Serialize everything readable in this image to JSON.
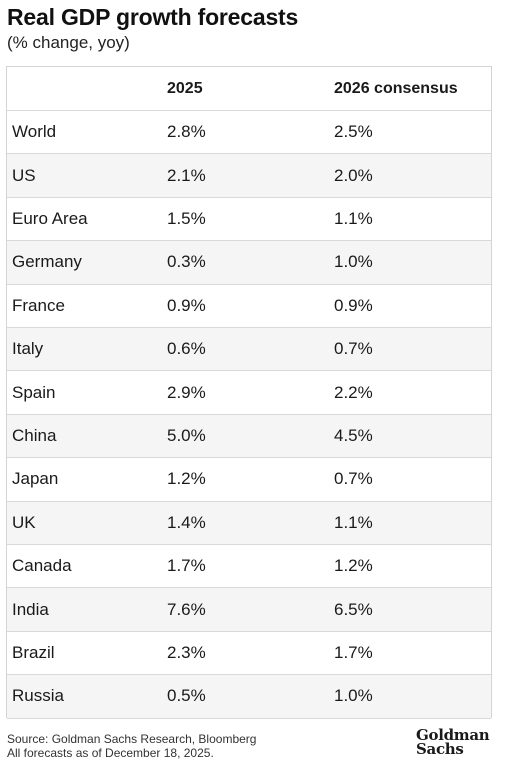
{
  "header": {
    "title": "Real GDP growth forecasts",
    "subtitle": "(% change, yoy)"
  },
  "chart_data": {
    "type": "table",
    "title": "Real GDP growth forecasts",
    "subtitle": "(% change, yoy)",
    "columns": [
      "",
      "2025",
      "2026 consensus"
    ],
    "rows": [
      {
        "country": "World",
        "y2025": "2.8%",
        "y2026": "2.5%"
      },
      {
        "country": "US",
        "y2025": "2.1%",
        "y2026": "2.0%"
      },
      {
        "country": "Euro Area",
        "y2025": "1.5%",
        "y2026": "1.1%"
      },
      {
        "country": "Germany",
        "y2025": "0.3%",
        "y2026": "1.0%"
      },
      {
        "country": "France",
        "y2025": "0.9%",
        "y2026": "0.9%"
      },
      {
        "country": "Italy",
        "y2025": "0.6%",
        "y2026": "0.7%"
      },
      {
        "country": "Spain",
        "y2025": "2.9%",
        "y2026": "2.2%"
      },
      {
        "country": "China",
        "y2025": "5.0%",
        "y2026": "4.5%"
      },
      {
        "country": "Japan",
        "y2025": "1.2%",
        "y2026": "0.7%"
      },
      {
        "country": "UK",
        "y2025": "1.4%",
        "y2026": "1.1%"
      },
      {
        "country": "Canada",
        "y2025": "1.7%",
        "y2026": "1.2%"
      },
      {
        "country": "India",
        "y2025": "7.6%",
        "y2026": "6.5%"
      },
      {
        "country": "Brazil",
        "y2025": "2.3%",
        "y2026": "1.7%"
      },
      {
        "country": "Russia",
        "y2025": "0.5%",
        "y2026": "1.0%"
      }
    ]
  },
  "footer": {
    "source_line1": "Source: Goldman Sachs Research, Bloomberg",
    "source_line2": "All forecasts as of December 18, 2025.",
    "logo_line1": "Goldman",
    "logo_line2": "Sachs"
  }
}
